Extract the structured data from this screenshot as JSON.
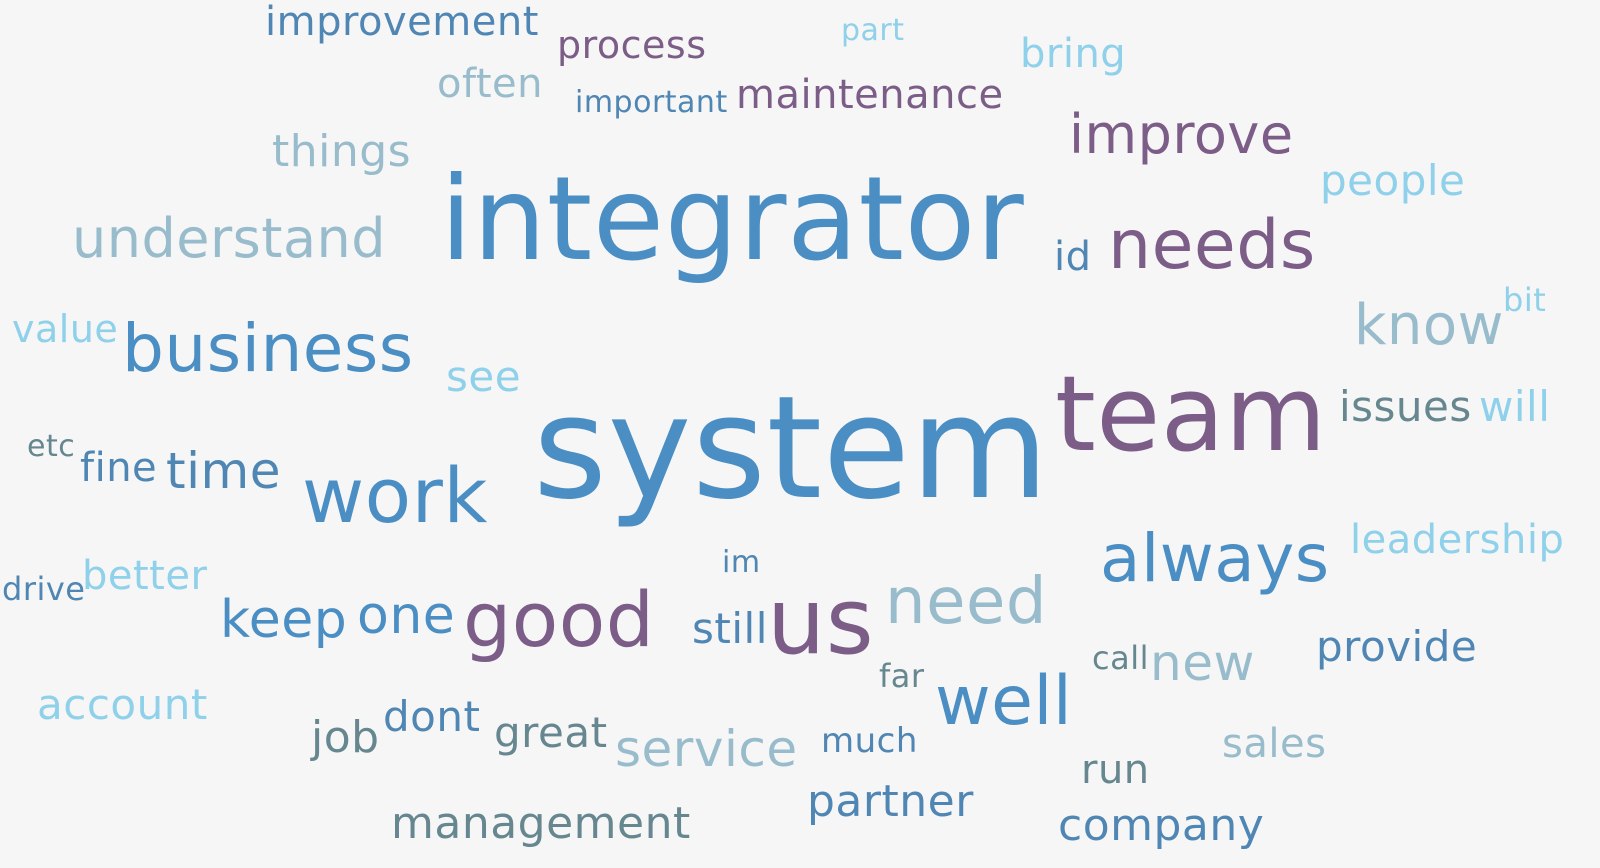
{
  "palette": {
    "blue": "#4a8ec4",
    "mid_blue": "#4f86b3",
    "purple": "#7b5d87",
    "sky": "#8fd0ea",
    "grey_blue": "#98bccb",
    "teal": "#66878f",
    "background": "#f6f6f6"
  },
  "words": {
    "integrator": "integrator",
    "system": "system",
    "team": "team",
    "needs": "needs",
    "id": "id",
    "improve": "improve",
    "business": "business",
    "work": "work",
    "us": "us",
    "good": "good",
    "always": "always",
    "need": "need",
    "well": "well",
    "know": "know",
    "understand": "understand",
    "improvement": "improvement",
    "process": "process",
    "part": "part",
    "bring": "bring",
    "often": "often",
    "important": "important",
    "maintenance": "maintenance",
    "things": "things",
    "people": "people",
    "value": "value",
    "bit": "bit",
    "see": "see",
    "issues": "issues",
    "will": "will",
    "etc": "etc",
    "fine": "fine",
    "time": "time",
    "leadership": "leadership",
    "im": "im",
    "drive": "drive",
    "better": "better",
    "keep": "keep",
    "one": "one",
    "still": "still",
    "provide": "provide",
    "call": "call",
    "new": "new",
    "far": "far",
    "account": "account",
    "dont": "dont",
    "job": "job",
    "great": "great",
    "service": "service",
    "much": "much",
    "sales": "sales",
    "run": "run",
    "partner": "partner",
    "management": "management",
    "company": "company"
  }
}
